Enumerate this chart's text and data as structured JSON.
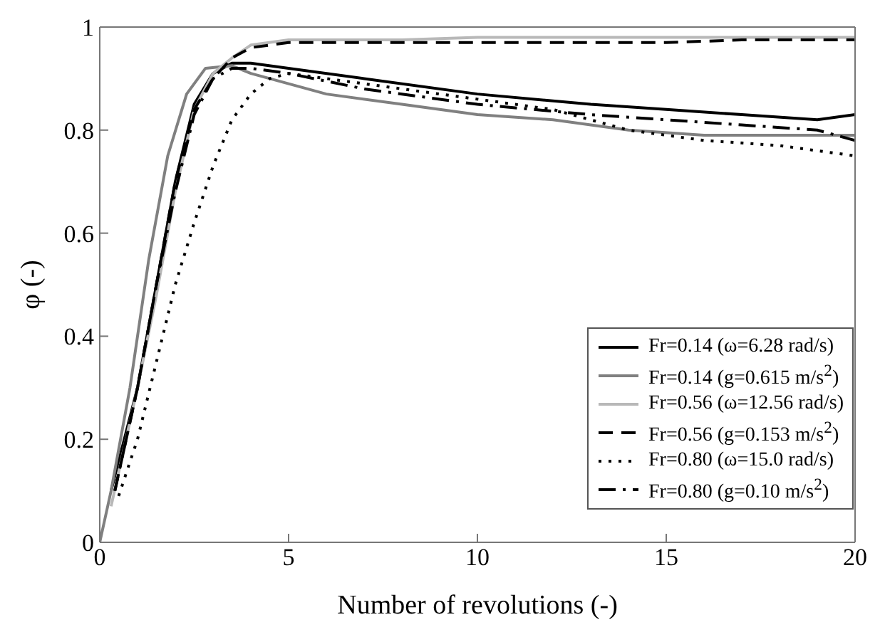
{
  "chart_data": {
    "type": "line",
    "xlabel": "Number of revolutions (-)",
    "ylabel": "φ (-)",
    "xlim": [
      0,
      20
    ],
    "xticks": [
      0,
      5,
      10,
      15,
      20
    ],
    "ylim": [
      0,
      1
    ],
    "yticks": [
      0,
      0.2,
      0.4,
      0.6,
      0.8,
      1
    ],
    "grid": false,
    "legend": "bottom right",
    "marker": "none",
    "series": [
      {
        "name": "Fr=0.14 (ω=6.28 rad/s)",
        "color": "#000000",
        "line_style": "solid",
        "x": [
          0.3,
          1,
          1.5,
          2,
          2.5,
          3,
          3.5,
          4,
          5,
          7,
          10,
          13,
          15,
          17,
          19,
          20
        ],
        "values": [
          0.1,
          0.3,
          0.5,
          0.7,
          0.85,
          0.91,
          0.93,
          0.93,
          0.92,
          0.9,
          0.87,
          0.85,
          0.84,
          0.83,
          0.82,
          0.83
        ]
      },
      {
        "name": "Fr=0.14 (g=0.615 m/s$^{2}$)",
        "color": "#808080",
        "line_style": "solid",
        "x": [
          0,
          0.3,
          0.8,
          1.3,
          1.8,
          2.3,
          2.8,
          3.5,
          4,
          5,
          6,
          8,
          10,
          12,
          14,
          16,
          18,
          20
        ],
        "values": [
          0,
          0.1,
          0.3,
          0.55,
          0.75,
          0.87,
          0.92,
          0.925,
          0.91,
          0.89,
          0.87,
          0.85,
          0.83,
          0.82,
          0.8,
          0.79,
          0.79,
          0.79
        ]
      },
      {
        "name": "Fr=0.56 (ω=12.56 rad/s)",
        "color": "#b8b8b8",
        "line_style": "solid",
        "x": [
          0.3,
          1,
          1.5,
          2,
          2.5,
          3,
          3.5,
          4,
          5,
          8,
          10,
          15,
          20
        ],
        "values": [
          0.07,
          0.3,
          0.48,
          0.68,
          0.84,
          0.91,
          0.94,
          0.965,
          0.975,
          0.975,
          0.98,
          0.98,
          0.98
        ]
      },
      {
        "name": "Fr=0.56 (g=0.153 m/s$^{2}$)",
        "color": "#000000",
        "line_style": "dashed",
        "x": [
          0.4,
          1,
          1.5,
          2,
          2.5,
          3,
          3.5,
          4,
          5,
          8,
          10,
          13,
          15,
          17,
          20
        ],
        "values": [
          0.1,
          0.3,
          0.5,
          0.7,
          0.84,
          0.9,
          0.94,
          0.96,
          0.97,
          0.97,
          0.97,
          0.97,
          0.97,
          0.975,
          0.975
        ]
      },
      {
        "name": "Fr=0.80 (ω=15.0 rad/s)",
        "color": "#000000",
        "line_style": "dotted",
        "x": [
          0.5,
          1,
          1.5,
          2,
          2.5,
          3,
          3.5,
          4,
          4.5,
          5,
          7,
          10,
          12,
          14,
          16,
          18,
          20
        ],
        "values": [
          0.09,
          0.2,
          0.35,
          0.5,
          0.62,
          0.73,
          0.82,
          0.87,
          0.9,
          0.91,
          0.89,
          0.86,
          0.84,
          0.8,
          0.78,
          0.77,
          0.75
        ]
      },
      {
        "name": "Fr=0.80 (g=0.10 m/s$^{2}$)",
        "color": "#000000",
        "line_style": "dashdot",
        "x": [
          0.4,
          1,
          1.5,
          2,
          2.5,
          3,
          3.5,
          4,
          5,
          7,
          10,
          13,
          15,
          17,
          19,
          20
        ],
        "values": [
          0.1,
          0.3,
          0.5,
          0.68,
          0.83,
          0.9,
          0.92,
          0.92,
          0.91,
          0.88,
          0.85,
          0.83,
          0.82,
          0.81,
          0.8,
          0.78
        ]
      }
    ]
  }
}
